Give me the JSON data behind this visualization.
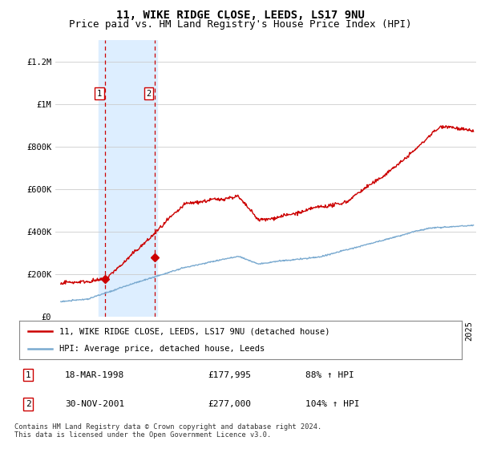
{
  "title": "11, WIKE RIDGE CLOSE, LEEDS, LS17 9NU",
  "subtitle": "Price paid vs. HM Land Registry's House Price Index (HPI)",
  "ylim": [
    0,
    1300000
  ],
  "yticks": [
    0,
    200000,
    400000,
    600000,
    800000,
    1000000,
    1200000
  ],
  "ytick_labels": [
    "£0",
    "£200K",
    "£400K",
    "£600K",
    "£800K",
    "£1M",
    "£1.2M"
  ],
  "xlim": [
    1994.6,
    2025.5
  ],
  "background_color": "#ffffff",
  "grid_color": "#cccccc",
  "sale_color": "#cc0000",
  "hpi_color": "#7aaad0",
  "shaded_color": "#ddeeff",
  "shaded_region": [
    1997.75,
    2002.1
  ],
  "sale_points": [
    {
      "year": 1998.22,
      "price": 177995,
      "label": "1"
    },
    {
      "year": 2001.92,
      "price": 277000,
      "label": "2"
    }
  ],
  "legend_line1": "11, WIKE RIDGE CLOSE, LEEDS, LS17 9NU (detached house)",
  "legend_line2": "HPI: Average price, detached house, Leeds",
  "footer": "Contains HM Land Registry data © Crown copyright and database right 2024.\nThis data is licensed under the Open Government Licence v3.0.",
  "title_fontsize": 10,
  "subtitle_fontsize": 9,
  "tick_fontsize": 7.5,
  "annot_fontsize": 8
}
